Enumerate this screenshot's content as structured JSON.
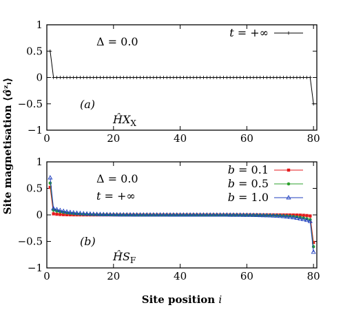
{
  "ylabel": "Site magnetisation ⟨σ̂ᶻᵢ⟩",
  "xlabel": "Site position i",
  "chart_data": [
    {
      "type": "line",
      "panel": "top",
      "xlim": [
        0,
        81
      ],
      "ylim": [
        -1,
        1
      ],
      "x_ticks": [
        0,
        20,
        40,
        60,
        80
      ],
      "x_tick_labels": [
        "0",
        "20",
        "40",
        "60",
        "80"
      ],
      "y_ticks": [
        1,
        0.5,
        0,
        -0.5,
        -1
      ],
      "y_tick_labels": [
        "1",
        "0.5",
        "0",
        "−0.5",
        "−1"
      ],
      "annotations": {
        "delta": "Δ = 0.0",
        "panel": "(a)",
        "hamiltonian": "ĤXX"
      },
      "legend_position": "top-right",
      "series": [
        {
          "name": "t = +∞",
          "color": "#000000",
          "marker": "plus",
          "x_start": 1,
          "x_end": 80,
          "edge_value": 0.5,
          "bulk_value": 0.0
        }
      ]
    },
    {
      "type": "line",
      "panel": "bottom",
      "xlim": [
        0,
        81
      ],
      "ylim": [
        -1,
        1
      ],
      "x_ticks": [
        0,
        20,
        40,
        60,
        80
      ],
      "x_tick_labels": [
        "0",
        "20",
        "40",
        "60",
        "80"
      ],
      "y_ticks": [
        1,
        0.5,
        0,
        -0.5,
        -1
      ],
      "y_tick_labels": [
        "1",
        "0.5",
        "0",
        "−0.5",
        "−1"
      ],
      "annotations": {
        "delta": "Δ = 0.0",
        "time": "t = +∞",
        "panel": "(b)",
        "hamiltonian": "ĤSF"
      },
      "legend_position": "top-right",
      "series": [
        {
          "name": "b = 0.1",
          "color": "#e41a1c",
          "marker": "square",
          "x_start": 1,
          "x_end": 80,
          "edge_value": 0.52,
          "second_value": 0.02,
          "decay": 0.5
        },
        {
          "name": "b = 0.5",
          "color": "#2ca02c",
          "marker": "circle",
          "x_start": 1,
          "x_end": 80,
          "edge_value": 0.6,
          "second_value": 0.09,
          "decay": 0.22
        },
        {
          "name": "b = 1.0",
          "color": "#1f3fbf",
          "marker": "triangle",
          "x_start": 1,
          "x_end": 80,
          "edge_value": 0.7,
          "second_value": 0.12,
          "decay": 0.18
        }
      ]
    }
  ]
}
